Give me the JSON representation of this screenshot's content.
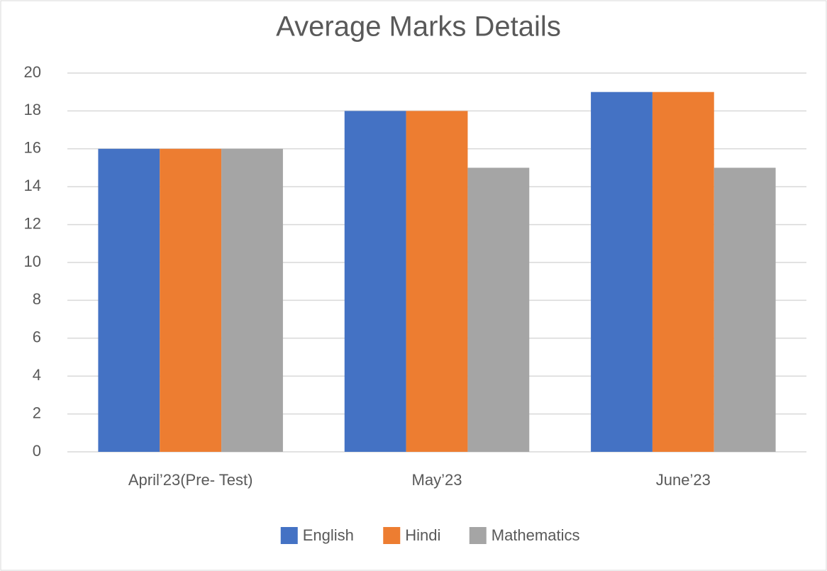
{
  "chart_data": {
    "type": "bar",
    "title": "Average Marks Details",
    "categories": [
      "April’23(Pre- Test)",
      "May’23",
      "June’23"
    ],
    "series": [
      {
        "name": "English",
        "color": "#4472c4",
        "values": [
          16,
          18,
          19
        ]
      },
      {
        "name": "Hindi",
        "color": "#ed7d31",
        "values": [
          16,
          18,
          19
        ]
      },
      {
        "name": "Mathematics",
        "color": "#a5a5a5",
        "values": [
          16,
          15,
          15
        ]
      }
    ],
    "ylim": [
      0,
      20
    ],
    "yticks": [
      0,
      2,
      4,
      6,
      8,
      10,
      12,
      14,
      16,
      18,
      20
    ],
    "grid": true,
    "legend": "bottom"
  }
}
